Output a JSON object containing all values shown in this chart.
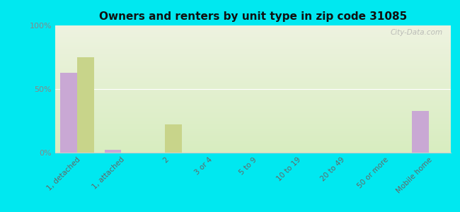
{
  "title": "Owners and renters by unit type in zip code 31085",
  "categories": [
    "1, detached",
    "1, attached",
    "2",
    "3 or 4",
    "5 to 9",
    "10 to 19",
    "20 to 49",
    "50 or more",
    "Mobile home"
  ],
  "owner_values": [
    63,
    2,
    0,
    0,
    0,
    0,
    0,
    0,
    33
  ],
  "renter_values": [
    75,
    0,
    22,
    0,
    0,
    0,
    0,
    0,
    0
  ],
  "owner_color": "#c9a8d4",
  "renter_color": "#c8d48a",
  "background_color": "#00e8f0",
  "plot_bg_top": "#eef3e0",
  "plot_bg_bottom": "#d8edc0",
  "ylim": [
    0,
    100
  ],
  "yticks": [
    0,
    50,
    100
  ],
  "ytick_labels": [
    "0%",
    "50%",
    "100%"
  ],
  "watermark": "City-Data.com",
  "tick_color": "#888888",
  "label_color": "#666666"
}
